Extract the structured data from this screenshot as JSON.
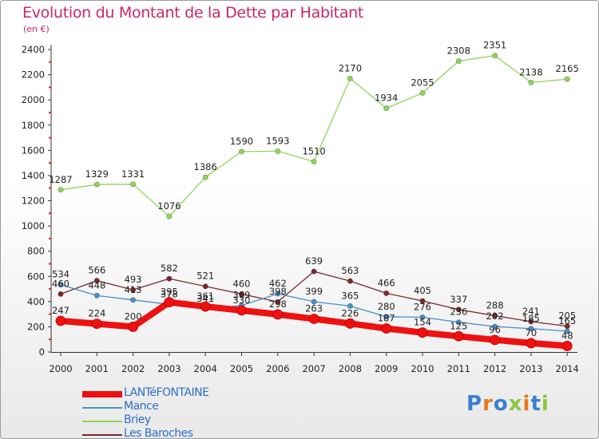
{
  "chart_data": {
    "type": "line",
    "title": "Evolution du Montant de la Dette par Habitant",
    "subtitle": "(en €)",
    "x": [
      "2000",
      "2001",
      "2002",
      "2003",
      "2004",
      "2005",
      "2006",
      "2007",
      "2008",
      "2009",
      "2010",
      "2011",
      "2012",
      "2013",
      "2014"
    ],
    "ylim": [
      0,
      2400
    ],
    "yticks": [
      0,
      200,
      400,
      600,
      800,
      1000,
      1200,
      1400,
      1600,
      1800,
      2000,
      2200,
      2400
    ],
    "grid": false,
    "legend_position": "bottom-left",
    "series": [
      {
        "name": "Briey",
        "color": "#8fd45a",
        "values": [
          1287,
          1329,
          1331,
          1076,
          1386,
          1590,
          1593,
          1510,
          2170,
          1934,
          2055,
          2308,
          2351,
          2138,
          2165
        ],
        "labels": [
          "1287",
          "1329",
          "1331",
          "1076",
          "1386",
          "1590",
          "1593",
          "1510",
          "2170",
          "1934",
          "2055",
          "2308",
          "2351",
          "2138",
          "2165"
        ]
      },
      {
        "name": "Les Baroches",
        "color": "#7a2a2a",
        "values": [
          460,
          566,
          493,
          582,
          521,
          460,
          398,
          639,
          563,
          466,
          405,
          337,
          288,
          241,
          205
        ],
        "labels": [
          "460",
          "566",
          "493",
          "582",
          "521",
          "460",
          "398",
          "639",
          "563",
          "466",
          "405",
          "337",
          "288",
          "241",
          "205"
        ]
      },
      {
        "name": "Mance",
        "color": "#4a90c8",
        "values": [
          534,
          448,
          413,
          378,
          341,
          369,
          462,
          399,
          365,
          280,
          276,
          236,
          202,
          185,
          165
        ],
        "labels": [
          "534",
          "448",
          "413",
          "378",
          "341",
          "369",
          "462",
          "399",
          "365",
          "280",
          "276",
          "236",
          "202",
          "185",
          "165"
        ]
      },
      {
        "name": "LANTéFONTAINE",
        "color": "#ee1111",
        "values": [
          247,
          224,
          200,
          395,
          361,
          330,
          298,
          263,
          226,
          187,
          154,
          125,
          96,
          70,
          48
        ],
        "labels": [
          "247",
          "224",
          "200",
          "395",
          "361",
          "330",
          "298",
          "263",
          "226",
          "187",
          "154",
          "125",
          "96",
          "70",
          "48"
        ]
      }
    ]
  },
  "legend": {
    "items": [
      {
        "label": "LANTéFONTAINE",
        "color": "#ee1111"
      },
      {
        "label": "Mance",
        "color": "#4a90c8"
      },
      {
        "label": "Briey",
        "color": "#8fd45a"
      },
      {
        "label": "Les Baroches",
        "color": "#7a2a2a"
      }
    ]
  },
  "logo": {
    "text": "Proxiti",
    "colors": [
      "#3a7fd0",
      "#e37b1b",
      "#3a7fd0",
      "#8cc63f",
      "#e37b1b",
      "#3a7fd0",
      "#8cc63f"
    ]
  }
}
